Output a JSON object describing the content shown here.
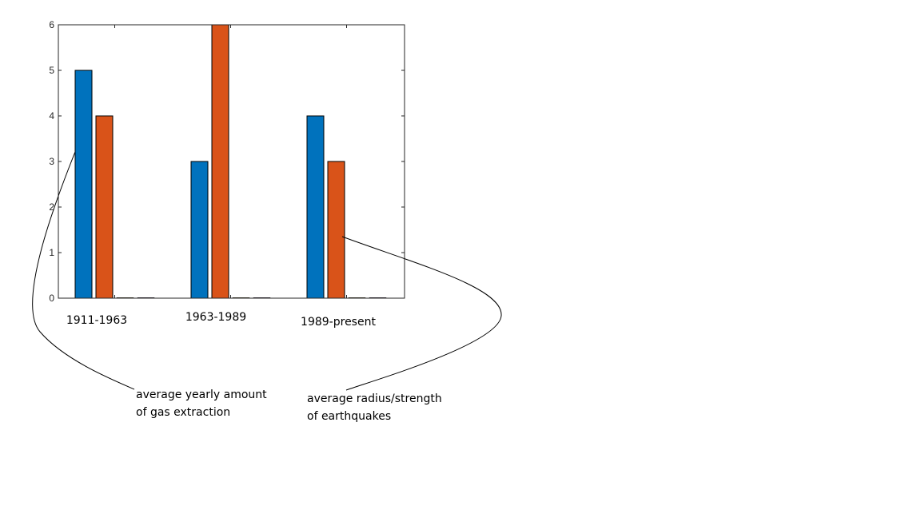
{
  "chart_data": {
    "type": "bar",
    "categories": [
      "1911-1963",
      "1963-1989",
      "1989-present"
    ],
    "series": [
      {
        "color": "#0072bd",
        "values": [
          5,
          3,
          4
        ]
      },
      {
        "color": "#d95319",
        "values": [
          4,
          6,
          3
        ]
      },
      {
        "color": "#edb120",
        "values": [
          0,
          0,
          0
        ]
      },
      {
        "color": "#7e2f8e",
        "values": [
          0,
          0,
          0
        ]
      }
    ],
    "yticks": [
      "0",
      "1",
      "2",
      "3",
      "4",
      "5",
      "6"
    ],
    "ylim": [
      0,
      6
    ],
    "grid": false,
    "annotations": [
      {
        "lines": [
          "average yearly amount",
          "of gas extraction"
        ]
      },
      {
        "lines": [
          "average radius/strength",
          "of earthquakes"
        ]
      }
    ]
  }
}
